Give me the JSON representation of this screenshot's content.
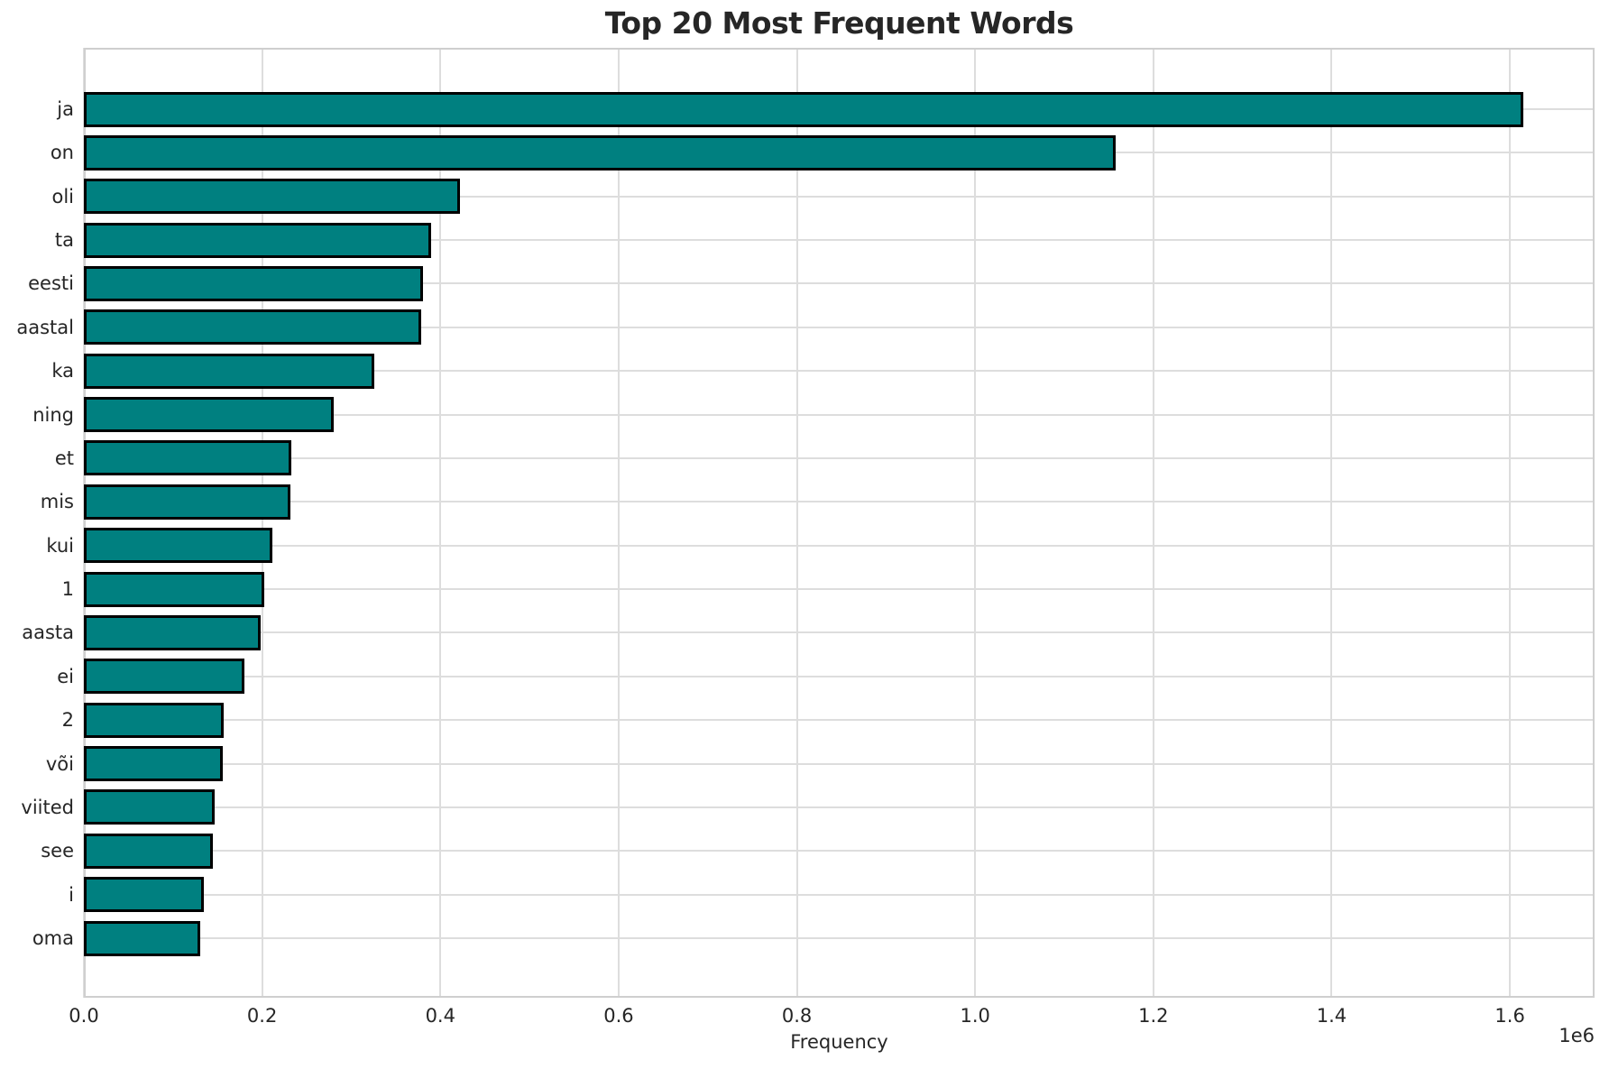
{
  "chart_data": {
    "type": "bar",
    "orientation": "horizontal",
    "title": "Top 20 Most Frequent Words",
    "xlabel": "Frequency",
    "axis_offset_label": "1e6",
    "categories": [
      "ja",
      "on",
      "oli",
      "ta",
      "eesti",
      "aastal",
      "ka",
      "ning",
      "et",
      "mis",
      "kui",
      "1",
      "aasta",
      "ei",
      "2",
      "või",
      "viited",
      "see",
      "i",
      "oma"
    ],
    "values": [
      1615000,
      1158000,
      422000,
      390000,
      380000,
      378000,
      326000,
      280000,
      233000,
      232000,
      212000,
      202000,
      198000,
      180000,
      157000,
      156000,
      147000,
      145000,
      135000,
      131000
    ],
    "xlim": [
      0,
      1695000
    ],
    "xtick_values": [
      0,
      200000,
      400000,
      600000,
      800000,
      1000000,
      1200000,
      1400000,
      1600000
    ],
    "xtick_labels": [
      "0.0",
      "0.2",
      "0.4",
      "0.6",
      "0.8",
      "1.0",
      "1.2",
      "1.4",
      "1.6"
    ],
    "grid": true,
    "legend_position": "none",
    "bar_color": "#008080",
    "bar_edge_color": "#000000",
    "grid_color": "#dddddd",
    "text_color": "#262626",
    "background_color": "#ffffff"
  }
}
